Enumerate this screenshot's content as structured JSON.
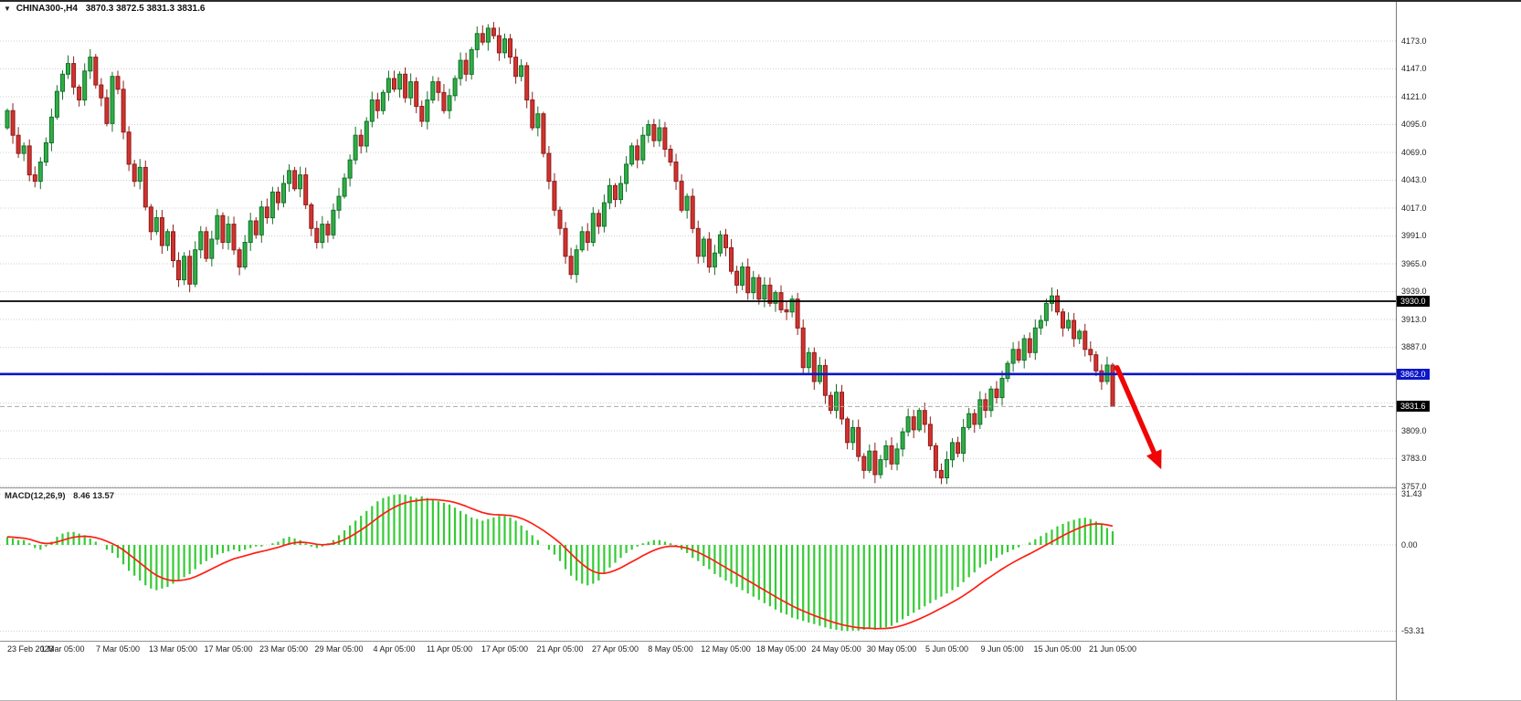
{
  "header": {
    "symbol": "CHINA300-,H4",
    "ohlc": "3870.3 3872.5 3831.3 3831.6",
    "dropdown_icon": "▼"
  },
  "price_axis": {
    "tick_values": [
      4173,
      4147,
      4121,
      4095,
      4069,
      4043,
      4017,
      3991,
      3965,
      3939,
      3913,
      3887,
      3861,
      3835,
      3809,
      3783,
      3757
    ],
    "hidden_ticks": [
      3861,
      3835
    ],
    "tags": {
      "resistance": "3930.0",
      "support": "3862.0",
      "last": "3831.6"
    }
  },
  "levels": {
    "resistance": 3930.0,
    "support": 3862.0,
    "last_price": 3831.6
  },
  "macd_panel": {
    "label": "MACD(12,26,9)",
    "values": "8.46 13.57",
    "axis_labels": [
      "31.43",
      "0.00",
      "-53.31"
    ],
    "axis_values": [
      31.43,
      0,
      -53.31
    ]
  },
  "annotation_arrow": {
    "from_index": 200.8,
    "from_price": 3868,
    "to_index": 208.8,
    "to_price": 3773,
    "color": "#ef0505"
  },
  "colors": {
    "up": "#2fae45",
    "up_border": "#15702a",
    "down": "#d2322e",
    "down_border": "#8c1f1c",
    "hist": "#35cb35",
    "signal": "#ff1e14",
    "resistance_line": "#000000",
    "support_line": "#0b16c9",
    "bid_line": "#ababab",
    "grid": "#cfcfcf",
    "tag_dark_bg": "#000000",
    "tag_blue_bg": "#0b16c9"
  },
  "chart_data": {
    "type": "candlestick",
    "title": "CHINA300- H4",
    "x_labels": [
      "23 Feb 2023",
      "1 Mar 05:00",
      "7 Mar 05:00",
      "13 Mar 05:00",
      "17 Mar 05:00",
      "23 Mar 05:00",
      "29 Mar 05:00",
      "4 Apr 05:00",
      "11 Apr 05:00",
      "17 Apr 05:00",
      "21 Apr 05:00",
      "27 Apr 05:00",
      "8 May 05:00",
      "12 May 05:00",
      "18 May 05:00",
      "24 May 05:00",
      "30 May 05:00",
      "5 Jun 05:00",
      "9 Jun 05:00",
      "15 Jun 05:00",
      "21 Jun 05:00"
    ],
    "bars_per_label": 10,
    "ylim": [
      3757,
      4196
    ],
    "open_first": 4092,
    "closes": [
      4108,
      4085,
      4068,
      4075,
      4048,
      4042,
      4060,
      4078,
      4102,
      4126,
      4142,
      4152,
      4130,
      4118,
      4145,
      4158,
      4132,
      4120,
      4096,
      4140,
      4128,
      4088,
      4058,
      4042,
      4055,
      4018,
      3995,
      4008,
      3982,
      3995,
      3968,
      3950,
      3972,
      3946,
      3978,
      3995,
      3970,
      3988,
      4010,
      3985,
      4002,
      3978,
      3962,
      3985,
      4005,
      3992,
      4018,
      4008,
      4032,
      4022,
      4040,
      4052,
      4035,
      4048,
      4020,
      3998,
      3985,
      4002,
      3992,
      4015,
      4028,
      4045,
      4062,
      4085,
      4075,
      4098,
      4118,
      4108,
      4125,
      4138,
      4128,
      4142,
      4120,
      4135,
      4112,
      4098,
      4118,
      4135,
      4125,
      4108,
      4122,
      4138,
      4155,
      4142,
      4165,
      4180,
      4172,
      4185,
      4178,
      4162,
      4175,
      4158,
      4140,
      4150,
      4118,
      4092,
      4105,
      4068,
      4042,
      4015,
      3998,
      3972,
      3955,
      3978,
      3995,
      3985,
      4012,
      4000,
      4022,
      4038,
      4025,
      4040,
      4058,
      4075,
      4062,
      4085,
      4095,
      4080,
      4092,
      4072,
      4060,
      4042,
      4015,
      4028,
      3998,
      3972,
      3988,
      3962,
      3975,
      3992,
      3980,
      3958,
      3945,
      3962,
      3938,
      3952,
      3932,
      3945,
      3928,
      3938,
      3922,
      3920,
      3932,
      3905,
      3868,
      3882,
      3855,
      3870,
      3842,
      3828,
      3845,
      3820,
      3798,
      3812,
      3785,
      3772,
      3790,
      3768,
      3782,
      3795,
      3778,
      3792,
      3808,
      3822,
      3810,
      3828,
      3815,
      3795,
      3772,
      3765,
      3782,
      3798,
      3788,
      3812,
      3825,
      3815,
      3838,
      3828,
      3848,
      3840,
      3858,
      3872,
      3885,
      3875,
      3895,
      3882,
      3905,
      3912,
      3928,
      3935,
      3920,
      3905,
      3912,
      3895,
      3902,
      3885,
      3880,
      3865,
      3855,
      3870.3,
      3831.6
    ],
    "last_candle": {
      "open": 3870.3,
      "high": 3872.5,
      "low": 3831.3,
      "close": 3831.6
    },
    "macd_ylim": [
      -59,
      34
    ],
    "macd_histogram": [
      5,
      4,
      3,
      3,
      1,
      -2,
      -3,
      -1,
      2,
      5,
      7,
      8,
      8,
      7,
      6,
      4,
      2,
      0,
      -3,
      -5,
      -8,
      -12,
      -16,
      -19,
      -22,
      -25,
      -27,
      -28,
      -27,
      -26,
      -24,
      -22,
      -20,
      -18,
      -15,
      -12,
      -10,
      -8,
      -6,
      -5,
      -4,
      -3,
      -4,
      -3,
      -2,
      -1,
      -1,
      0,
      1,
      2,
      4,
      5,
      4,
      3,
      1,
      -1,
      -2,
      -1,
      1,
      3,
      6,
      9,
      12,
      15,
      18,
      21,
      24,
      27,
      29,
      30,
      31,
      31.4,
      31,
      30,
      29,
      30,
      29,
      28,
      27,
      26,
      25,
      23,
      21,
      19,
      17,
      16,
      15,
      16,
      17,
      18,
      18,
      17,
      15,
      12,
      9,
      6,
      3,
      0,
      -3,
      -6,
      -10,
      -15,
      -19,
      -22,
      -24,
      -25,
      -24,
      -22,
      -18,
      -14,
      -11,
      -8,
      -5,
      -3,
      -1,
      1,
      2,
      3,
      3,
      2,
      1,
      -1,
      -3,
      -5,
      -8,
      -10,
      -13,
      -15,
      -18,
      -20,
      -22,
      -24,
      -26,
      -28,
      -30,
      -32,
      -34,
      -36,
      -38,
      -40,
      -42,
      -43,
      -45,
      -46,
      -47,
      -48,
      -49,
      -50,
      -51,
      -52,
      -52.5,
      -53,
      -53.3,
      -53,
      -53,
      -52.5,
      -52,
      -52.5,
      -52,
      -51,
      -50,
      -48,
      -46,
      -44,
      -42,
      -40,
      -38,
      -36,
      -34,
      -32,
      -30,
      -28,
      -26,
      -23,
      -20,
      -17,
      -14,
      -12,
      -10,
      -8,
      -6,
      -4.5,
      -3,
      -1.5,
      0,
      1.5,
      3.5,
      5.5,
      7.5,
      9.5,
      11.5,
      13,
      14.5,
      15.5,
      16.5,
      16.8,
      16,
      14.5,
      12.5,
      10.5,
      8.46
    ],
    "macd_signal_rule": "EMA(9) of histogram"
  }
}
